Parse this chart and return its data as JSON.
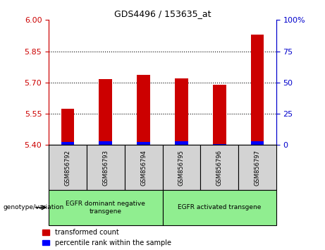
{
  "title": "GDS4496 / 153635_at",
  "samples": [
    "GSM856792",
    "GSM856793",
    "GSM856794",
    "GSM856795",
    "GSM856796",
    "GSM856797"
  ],
  "red_values": [
    5.575,
    5.715,
    5.735,
    5.72,
    5.69,
    5.93
  ],
  "blue_values": [
    5.415,
    5.418,
    5.415,
    5.417,
    5.403,
    5.418
  ],
  "base": 5.4,
  "ylim_left": [
    5.4,
    6.0
  ],
  "yticks_left": [
    5.4,
    5.55,
    5.7,
    5.85,
    6.0
  ],
  "yticks_right": [
    0,
    25,
    50,
    75,
    100
  ],
  "group1_label": "EGFR dominant negative\ntransgene",
  "group2_label": "EGFR activated transgene",
  "group1_indices": [
    0,
    1,
    2
  ],
  "group2_indices": [
    3,
    4,
    5
  ],
  "legend_red": "transformed count",
  "legend_blue": "percentile rank within the sample",
  "xlabel_left": "genotype/variation",
  "left_color": "#cc0000",
  "right_color": "#0000cc",
  "group_bg_color": "#90ee90",
  "sample_bg_color": "#d3d3d3",
  "bar_width": 0.35
}
